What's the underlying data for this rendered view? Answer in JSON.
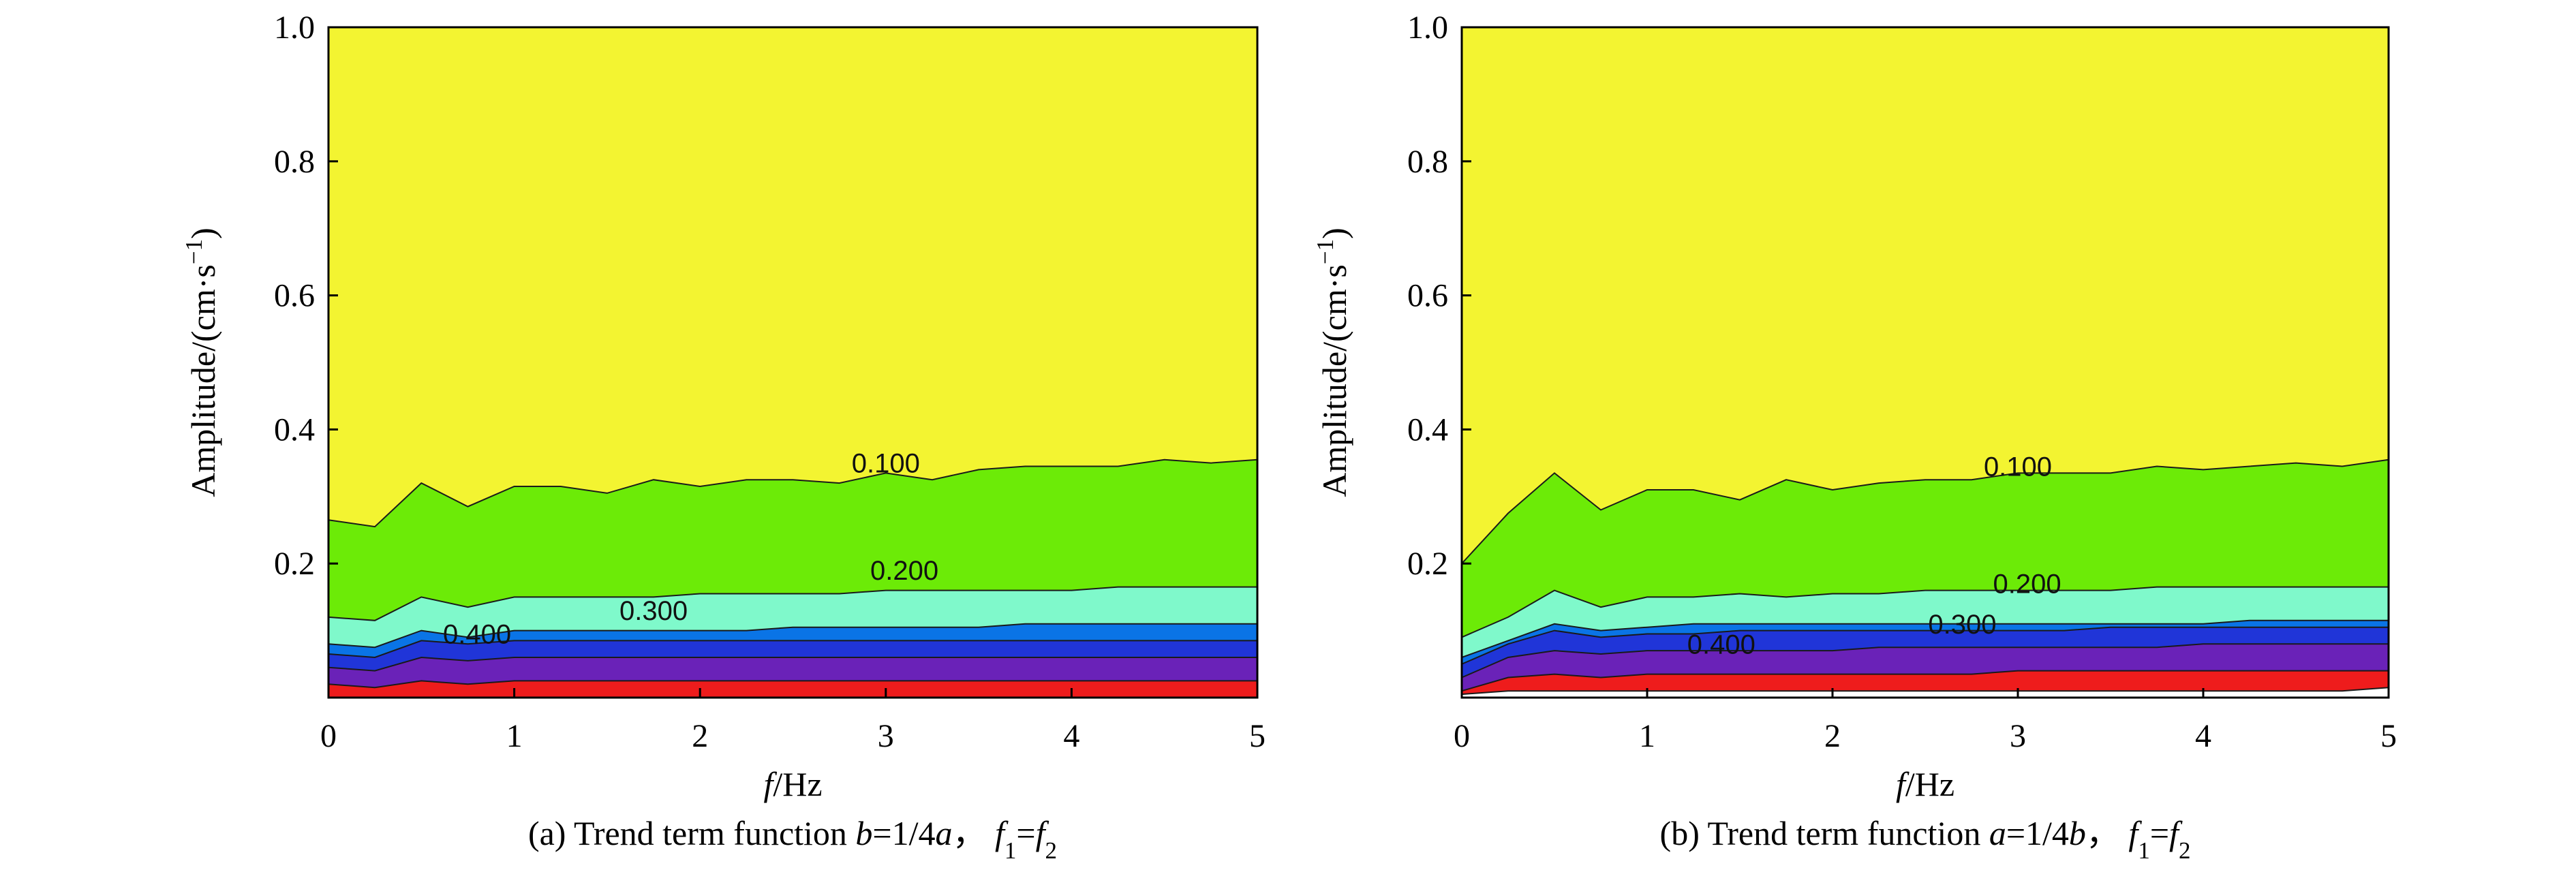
{
  "chart_data": [
    {
      "id": "a",
      "type": "contour",
      "caption_parts": [
        {
          "text": "(a) Trend term function ",
          "style": "normal"
        },
        {
          "text": "b",
          "style": "italic"
        },
        {
          "text": "=1/4",
          "style": "normal"
        },
        {
          "text": "a",
          "style": "italic"
        },
        {
          "text": "， ",
          "style": "normal"
        },
        {
          "text": "f",
          "style": "italic"
        },
        {
          "text": "1",
          "style": "sub"
        },
        {
          "text": "=",
          "style": "normal"
        },
        {
          "text": "f",
          "style": "italic"
        },
        {
          "text": "2",
          "style": "sub"
        }
      ],
      "xlabel_parts": [
        {
          "text": "f",
          "style": "italic"
        },
        {
          "text": "/Hz",
          "style": "normal"
        }
      ],
      "ylabel_parts": [
        {
          "text": "Amplitude/(cm·s",
          "style": "normal"
        },
        {
          "text": "−1",
          "style": "sup"
        },
        {
          "text": ")",
          "style": "normal"
        }
      ],
      "xlim": [
        0,
        5
      ],
      "ylim": [
        0,
        1.0
      ],
      "xticks": [
        "0",
        "1",
        "2",
        "3",
        "4",
        "5"
      ],
      "yticks": [
        "0.2",
        "0.4",
        "0.6",
        "0.8",
        "1.0"
      ],
      "ytick_values": [
        0.2,
        0.4,
        0.6,
        0.8,
        1.0
      ],
      "x": [
        0,
        0.25,
        0.5,
        0.75,
        1.0,
        1.25,
        1.5,
        1.75,
        2.0,
        2.25,
        2.5,
        2.75,
        3.0,
        3.25,
        3.5,
        3.75,
        4.0,
        4.25,
        4.5,
        4.75,
        5.0
      ],
      "bands": [
        {
          "color": "#FFFFFF",
          "upper": [
            0,
            0,
            0,
            0,
            0,
            0,
            0,
            0,
            0,
            0,
            0,
            0,
            0,
            0,
            0,
            0,
            0,
            0,
            0,
            0,
            0
          ]
        },
        {
          "color": "#EE1C1C",
          "upper": [
            0.02,
            0.015,
            0.025,
            0.02,
            0.025,
            0.025,
            0.025,
            0.025,
            0.025,
            0.025,
            0.025,
            0.025,
            0.025,
            0.025,
            0.025,
            0.025,
            0.025,
            0.025,
            0.025,
            0.025,
            0.025
          ]
        },
        {
          "color": "#6A22B8",
          "upper": [
            0.045,
            0.04,
            0.06,
            0.055,
            0.06,
            0.06,
            0.06,
            0.06,
            0.06,
            0.06,
            0.06,
            0.06,
            0.06,
            0.06,
            0.06,
            0.06,
            0.06,
            0.06,
            0.06,
            0.06,
            0.06
          ]
        },
        {
          "color": "#2035D8",
          "upper": [
            0.065,
            0.06,
            0.085,
            0.08,
            0.085,
            0.085,
            0.085,
            0.085,
            0.085,
            0.085,
            0.085,
            0.085,
            0.085,
            0.085,
            0.085,
            0.085,
            0.085,
            0.085,
            0.085,
            0.085,
            0.085
          ]
        },
        {
          "color": "#0A74E6",
          "upper": [
            0.08,
            0.075,
            0.1,
            0.09,
            0.1,
            0.1,
            0.1,
            0.1,
            0.1,
            0.1,
            0.105,
            0.105,
            0.105,
            0.105,
            0.105,
            0.11,
            0.11,
            0.11,
            0.11,
            0.11,
            0.11
          ]
        },
        {
          "color": "#7FF9CB",
          "upper": [
            0.12,
            0.115,
            0.15,
            0.135,
            0.15,
            0.15,
            0.15,
            0.15,
            0.155,
            0.155,
            0.155,
            0.155,
            0.16,
            0.16,
            0.16,
            0.16,
            0.16,
            0.165,
            0.165,
            0.165,
            0.165
          ]
        },
        {
          "color": "#6CEB07",
          "upper": [
            0.265,
            0.255,
            0.32,
            0.285,
            0.315,
            0.315,
            0.305,
            0.325,
            0.315,
            0.325,
            0.325,
            0.32,
            0.335,
            0.325,
            0.34,
            0.345,
            0.345,
            0.345,
            0.355,
            0.35,
            0.355
          ]
        },
        {
          "color": "#F3F431",
          "upper": [
            1,
            1,
            1,
            1,
            1,
            1,
            1,
            1,
            1,
            1,
            1,
            1,
            1,
            1,
            1,
            1,
            1,
            1,
            1,
            1,
            1
          ]
        }
      ],
      "contour_labels": [
        {
          "text": "0.100",
          "x": 3.0,
          "y": 0.35
        },
        {
          "text": "0.200",
          "x": 3.1,
          "y": 0.19
        },
        {
          "text": "0.300",
          "x": 1.75,
          "y": 0.13
        },
        {
          "text": "0.400",
          "x": 0.8,
          "y": 0.095
        }
      ]
    },
    {
      "id": "b",
      "type": "contour",
      "caption_parts": [
        {
          "text": "(b) Trend term function ",
          "style": "normal"
        },
        {
          "text": "a",
          "style": "italic"
        },
        {
          "text": "=1/4",
          "style": "normal"
        },
        {
          "text": "b",
          "style": "italic"
        },
        {
          "text": "， ",
          "style": "normal"
        },
        {
          "text": "f",
          "style": "italic"
        },
        {
          "text": "1",
          "style": "sub"
        },
        {
          "text": "=",
          "style": "normal"
        },
        {
          "text": "f",
          "style": "italic"
        },
        {
          "text": "2",
          "style": "sub"
        }
      ],
      "xlabel_parts": [
        {
          "text": "f",
          "style": "italic"
        },
        {
          "text": "/Hz",
          "style": "normal"
        }
      ],
      "ylabel_parts": [
        {
          "text": "Amplitude/(cm·s",
          "style": "normal"
        },
        {
          "text": "−1",
          "style": "sup"
        },
        {
          "text": ")",
          "style": "normal"
        }
      ],
      "xlim": [
        0,
        5
      ],
      "ylim": [
        0,
        1.0
      ],
      "xticks": [
        "0",
        "1",
        "2",
        "3",
        "4",
        "5"
      ],
      "yticks": [
        "0.2",
        "0.4",
        "0.6",
        "0.8",
        "1.0"
      ],
      "ytick_values": [
        0.2,
        0.4,
        0.6,
        0.8,
        1.0
      ],
      "x": [
        0,
        0.25,
        0.5,
        0.75,
        1.0,
        1.25,
        1.5,
        1.75,
        2.0,
        2.25,
        2.5,
        2.75,
        3.0,
        3.25,
        3.5,
        3.75,
        4.0,
        4.25,
        4.5,
        4.75,
        5.0
      ],
      "bands": [
        {
          "color": "#FFFFFF",
          "upper": [
            0.005,
            0.01,
            0.01,
            0.01,
            0.01,
            0.01,
            0.01,
            0.01,
            0.01,
            0.01,
            0.01,
            0.01,
            0.01,
            0.01,
            0.01,
            0.01,
            0.01,
            0.01,
            0.01,
            0.01,
            0.015
          ]
        },
        {
          "color": "#EE1C1C",
          "upper": [
            0.01,
            0.03,
            0.035,
            0.03,
            0.035,
            0.035,
            0.035,
            0.035,
            0.035,
            0.035,
            0.035,
            0.035,
            0.04,
            0.04,
            0.04,
            0.04,
            0.04,
            0.04,
            0.04,
            0.04,
            0.04
          ]
        },
        {
          "color": "#6A22B8",
          "upper": [
            0.03,
            0.06,
            0.07,
            0.065,
            0.07,
            0.07,
            0.07,
            0.07,
            0.07,
            0.075,
            0.075,
            0.075,
            0.075,
            0.075,
            0.075,
            0.075,
            0.08,
            0.08,
            0.08,
            0.08,
            0.08
          ]
        },
        {
          "color": "#2035D8",
          "upper": [
            0.05,
            0.08,
            0.1,
            0.09,
            0.095,
            0.095,
            0.1,
            0.1,
            0.1,
            0.1,
            0.1,
            0.1,
            0.1,
            0.1,
            0.105,
            0.105,
            0.105,
            0.105,
            0.105,
            0.105,
            0.105
          ]
        },
        {
          "color": "#0A74E6",
          "upper": [
            0.06,
            0.085,
            0.11,
            0.1,
            0.105,
            0.11,
            0.11,
            0.11,
            0.11,
            0.11,
            0.11,
            0.11,
            0.11,
            0.11,
            0.11,
            0.11,
            0.11,
            0.115,
            0.115,
            0.115,
            0.115
          ]
        },
        {
          "color": "#7FF9CB",
          "upper": [
            0.09,
            0.12,
            0.16,
            0.135,
            0.15,
            0.15,
            0.155,
            0.15,
            0.155,
            0.155,
            0.16,
            0.16,
            0.16,
            0.16,
            0.16,
            0.165,
            0.165,
            0.165,
            0.165,
            0.165,
            0.165
          ]
        },
        {
          "color": "#6CEB07",
          "upper": [
            0.2,
            0.275,
            0.335,
            0.28,
            0.31,
            0.31,
            0.295,
            0.325,
            0.31,
            0.32,
            0.325,
            0.325,
            0.335,
            0.335,
            0.335,
            0.345,
            0.34,
            0.345,
            0.35,
            0.345,
            0.355
          ]
        },
        {
          "color": "#F3F431",
          "upper": [
            1,
            1,
            1,
            1,
            1,
            1,
            1,
            1,
            1,
            1,
            1,
            1,
            1,
            1,
            1,
            1,
            1,
            1,
            1,
            1,
            1
          ]
        }
      ],
      "contour_labels": [
        {
          "text": "0.100",
          "x": 3.0,
          "y": 0.345
        },
        {
          "text": "0.200",
          "x": 3.05,
          "y": 0.17
        },
        {
          "text": "0.300",
          "x": 2.7,
          "y": 0.11
        },
        {
          "text": "0.400",
          "x": 1.4,
          "y": 0.08
        }
      ]
    }
  ]
}
